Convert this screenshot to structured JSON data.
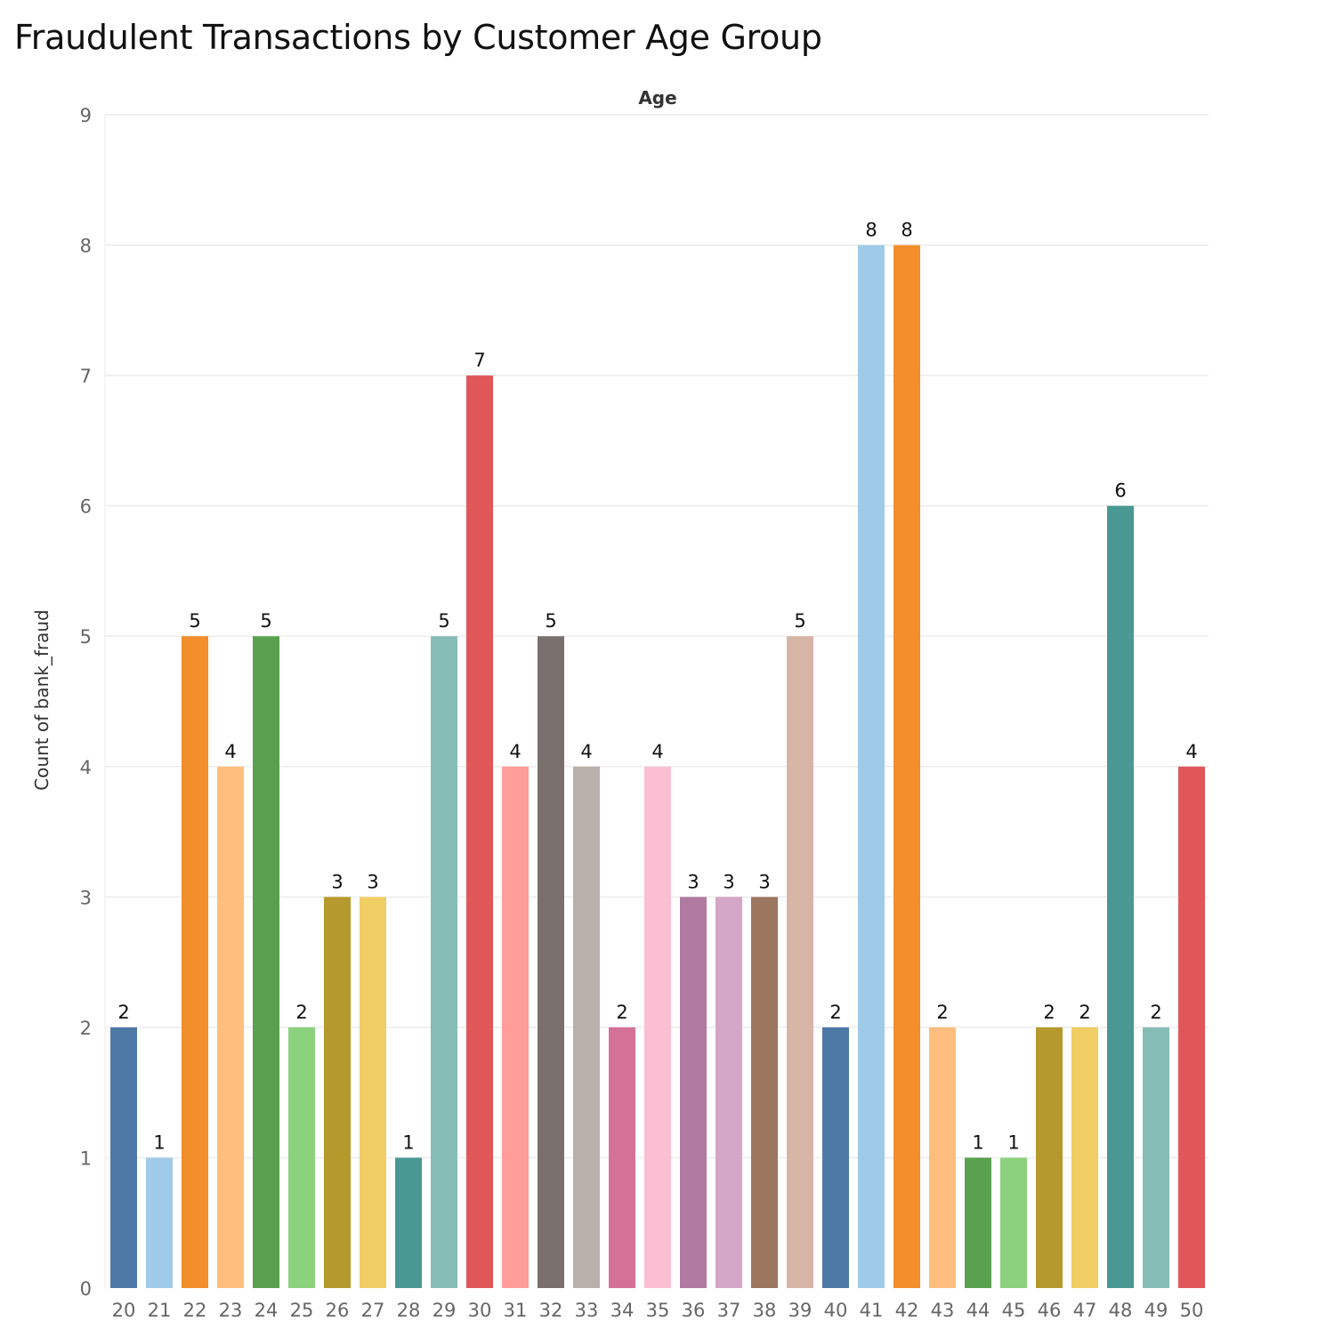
{
  "chart_data": {
    "type": "bar",
    "title": "Fraudulent Transactions by Customer Age Group",
    "xlabel": "Age",
    "ylabel": "Count of bank_fraud",
    "ylim": [
      0,
      9
    ],
    "yticks": [
      0,
      1,
      2,
      3,
      4,
      5,
      6,
      7,
      8,
      9
    ],
    "grid": true,
    "categories": [
      "20",
      "21",
      "22",
      "23",
      "24",
      "25",
      "26",
      "27",
      "28",
      "29",
      "30",
      "31",
      "32",
      "33",
      "34",
      "35",
      "36",
      "37",
      "38",
      "39",
      "40",
      "41",
      "42",
      "43",
      "44",
      "45",
      "46",
      "47",
      "48",
      "49",
      "50"
    ],
    "values": [
      2,
      1,
      5,
      4,
      5,
      2,
      3,
      3,
      1,
      5,
      7,
      4,
      5,
      4,
      2,
      4,
      3,
      3,
      3,
      5,
      2,
      8,
      8,
      2,
      1,
      1,
      2,
      2,
      6,
      2,
      4
    ],
    "colors": [
      "#4e79a7",
      "#a0cbe8",
      "#f28e2b",
      "#ffbe7d",
      "#59a14f",
      "#8cd17d",
      "#b6992d",
      "#f1ce63",
      "#499894",
      "#86bcb6",
      "#e15759",
      "#ff9d9a",
      "#79706e",
      "#bab0ac",
      "#d37295",
      "#fabfd2",
      "#b07aa1",
      "#d4a6c8",
      "#9d7660",
      "#d7b5a6",
      "#4e79a7",
      "#a0cbe8",
      "#f28e2b",
      "#ffbe7d",
      "#59a14f",
      "#8cd17d",
      "#b6992d",
      "#f1ce63",
      "#499894",
      "#86bcb6",
      "#e15759"
    ]
  }
}
